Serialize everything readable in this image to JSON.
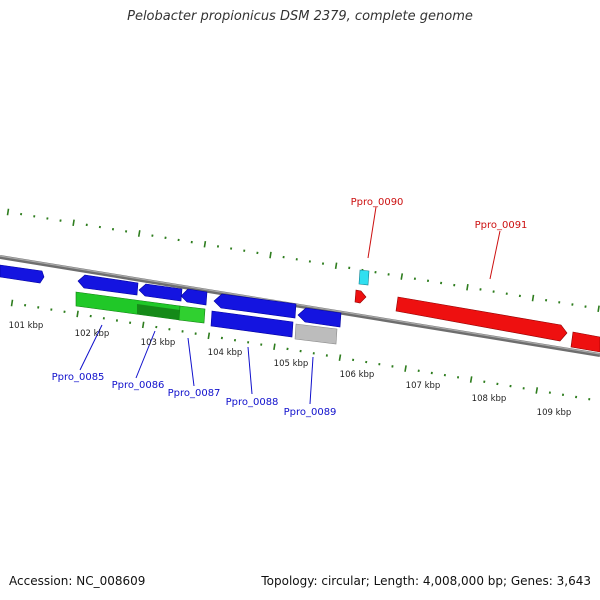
{
  "title": "Pelobacter propionicus DSM 2379, complete genome",
  "footer": {
    "accession": "Accession: NC_008609",
    "topology": "Topology: circular; Length: 4,008,000 bp; Genes: 3,643"
  },
  "colors": {
    "background": "#ffffff",
    "backbone": "#888888",
    "tick_marks": "#2e7d1e",
    "reverse_cds": "#1010e0",
    "reverse_cds_other": "#20c020",
    "reverse_pseudo": "#b8b8b8",
    "forward_cds": "#ee1010",
    "forward_rna": "#30d8e8",
    "reverse_label": "#1010cc",
    "forward_label": "#cc1010"
  },
  "scale_labels": [
    "101 kbp",
    "102 kbp",
    "103 kbp",
    "104 kbp",
    "105 kbp",
    "106 kbp",
    "107 kbp",
    "108 kbp",
    "109 kbp"
  ],
  "gene_labels": {
    "reverse": [
      "Ppro_0085",
      "Ppro_0086",
      "Ppro_0087",
      "Ppro_0088",
      "Ppro_0089"
    ],
    "forward": [
      "Ppro_0090",
      "Ppro_0091"
    ]
  }
}
